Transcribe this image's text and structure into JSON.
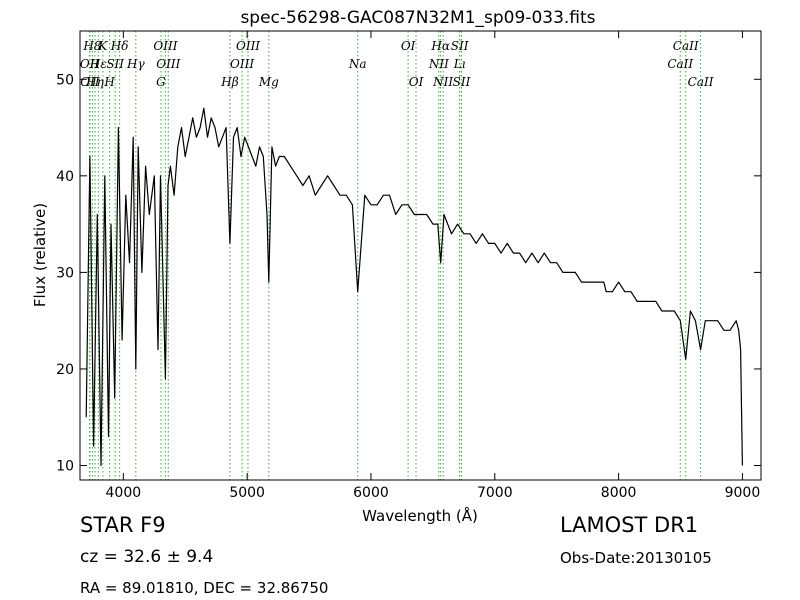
{
  "chart_data": {
    "type": "line",
    "title": "spec-56298-GAC087N32M1_sp09-033.fits",
    "xlabel": "Wavelength (Å)",
    "ylabel": "Flux (relative)",
    "xlim": [
      3650,
      9150
    ],
    "ylim": [
      8.5,
      55
    ],
    "xticks": [
      4000,
      5000,
      6000,
      7000,
      8000,
      9000
    ],
    "yticks": [
      10,
      20,
      30,
      40,
      50
    ],
    "line_color": "#000000",
    "marker_color": "#3aaa3a",
    "grid": false,
    "series": [
      {
        "x": [
          3700,
          3730,
          3760,
          3790,
          3820,
          3850,
          3880,
          3900,
          3930,
          3960,
          3990,
          4020,
          4050,
          4080,
          4101,
          4120,
          4150,
          4180,
          4210,
          4250,
          4280,
          4300,
          4340,
          4361,
          4380,
          4410,
          4440,
          4470,
          4500,
          4530,
          4560,
          4590,
          4620,
          4650,
          4680,
          4710,
          4740,
          4770,
          4800,
          4830,
          4861,
          4890,
          4920,
          4950,
          4980,
          5010,
          5040,
          5070,
          5100,
          5130,
          5160,
          5175,
          5200,
          5230,
          5260,
          5300,
          5350,
          5400,
          5450,
          5500,
          5550,
          5600,
          5650,
          5700,
          5750,
          5800,
          5850,
          5893,
          5950,
          6000,
          6050,
          6100,
          6150,
          6200,
          6250,
          6300,
          6350,
          6400,
          6450,
          6500,
          6540,
          6563,
          6590,
          6620,
          6650,
          6700,
          6750,
          6800,
          6850,
          6900,
          6950,
          7000,
          7050,
          7100,
          7150,
          7200,
          7250,
          7300,
          7350,
          7400,
          7450,
          7500,
          7550,
          7600,
          7650,
          7700,
          7750,
          7800,
          7850,
          7880,
          7900,
          7950,
          8000,
          8050,
          8100,
          8150,
          8200,
          8250,
          8300,
          8350,
          8400,
          8450,
          8498,
          8542,
          8580,
          8620,
          8662,
          8700,
          8750,
          8800,
          8850,
          8900,
          8950,
          8970,
          8985,
          9000
        ],
        "y": [
          15,
          42,
          12,
          36,
          10,
          40,
          13,
          35,
          17,
          45,
          23,
          38,
          31,
          44,
          20,
          43,
          30,
          41,
          36,
          40,
          22,
          40,
          19,
          39,
          41,
          38,
          43,
          45,
          42,
          44,
          46,
          44,
          45,
          47,
          44,
          46,
          45,
          43,
          44,
          45,
          33,
          44,
          45,
          42,
          44,
          43,
          42,
          41,
          43,
          42,
          36,
          29,
          43,
          41,
          42,
          42,
          41,
          40,
          39,
          40,
          38,
          39,
          40,
          39,
          38,
          38,
          37,
          28,
          38,
          37,
          37,
          38,
          38,
          36,
          37,
          37,
          36,
          36,
          36,
          35,
          35,
          31,
          36,
          35,
          34,
          35,
          34,
          34,
          33,
          34,
          33,
          33,
          32,
          33,
          32,
          32,
          31,
          32,
          31,
          32,
          31,
          31,
          30,
          30,
          30,
          29,
          29,
          29,
          29,
          29,
          28,
          28,
          29,
          28,
          28,
          27,
          27,
          27,
          27,
          26,
          26,
          26,
          25,
          21,
          26,
          25,
          22,
          25,
          25,
          25,
          24,
          24,
          25,
          24,
          22,
          10
        ]
      }
    ],
    "lines": [
      {
        "w": 3727,
        "label": "OII",
        "row": 1
      },
      {
        "w": 3730,
        "label": "OII",
        "row": 2
      },
      {
        "w": 3750,
        "label": "H8",
        "row": 0
      },
      {
        "w": 3771,
        "label": "Hη",
        "row": 2
      },
      {
        "w": 3798,
        "label": "Hε",
        "row": 1
      },
      {
        "w": 3835,
        "label": "K",
        "row": 0
      },
      {
        "w": 3889,
        "label": "H",
        "row": 2
      },
      {
        "w": 3934,
        "label": "SII",
        "row": 1
      },
      {
        "w": 3970,
        "label": "Hδ",
        "row": 0
      },
      {
        "w": 4101,
        "label": "Hγ",
        "row": 1
      },
      {
        "w": 4304,
        "label": "G",
        "row": 2
      },
      {
        "w": 4340,
        "label": "OIII",
        "row": 0
      },
      {
        "w": 4363,
        "label": "OIII",
        "row": 1
      },
      {
        "w": 4861,
        "label": "Hβ",
        "row": 2
      },
      {
        "w": 4959,
        "label": "OIII",
        "row": 1
      },
      {
        "w": 5007,
        "label": "OIII",
        "row": 0
      },
      {
        "w": 5175,
        "label": "Mg",
        "row": 2
      },
      {
        "w": 5893,
        "label": "Na",
        "row": 1
      },
      {
        "w": 6300,
        "label": "OI",
        "row": 0
      },
      {
        "w": 6364,
        "label": "OI",
        "row": 2
      },
      {
        "w": 6548,
        "label": "NII",
        "row": 1
      },
      {
        "w": 6563,
        "label": "Hα",
        "row": 0
      },
      {
        "w": 6583,
        "label": "NII",
        "row": 2
      },
      {
        "w": 6716,
        "label": "SII",
        "row": 0
      },
      {
        "w": 6716,
        "label": "Lı",
        "row": 1
      },
      {
        "w": 6731,
        "label": "SII",
        "row": 2
      },
      {
        "w": 8498,
        "label": "CaII",
        "row": 1
      },
      {
        "w": 8542,
        "label": "CaII",
        "row": 0
      },
      {
        "w": 8662,
        "label": "CaII",
        "row": 2
      }
    ]
  },
  "info": {
    "class_label": "STAR   F9",
    "survey": "LAMOST DR1",
    "cz": "cz = 32.6  ± 9.4",
    "obs_date": "Obs-Date:20130105",
    "radec": "RA = 89.01810, DEC = 32.86750"
  }
}
